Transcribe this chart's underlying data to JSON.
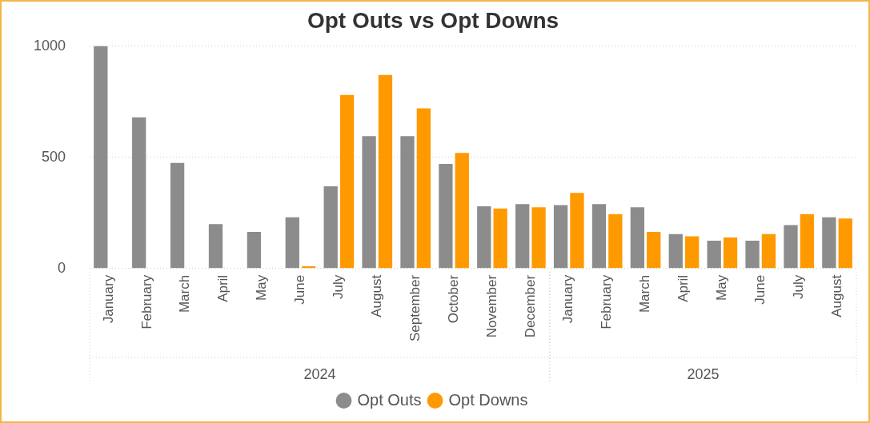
{
  "chart_data": {
    "type": "bar",
    "title": "Opt Outs vs Opt Downs",
    "categories": [
      "January",
      "February",
      "March",
      "April",
      "May",
      "June",
      "July",
      "August",
      "September",
      "October",
      "November",
      "December",
      "January",
      "February",
      "March",
      "April",
      "May",
      "June",
      "July",
      "August"
    ],
    "annotations": [
      "2024",
      "2025"
    ],
    "series": [
      {
        "name": "Opt Outs",
        "color": "#8c8c8c",
        "values": [
          1000,
          680,
          475,
          200,
          165,
          230,
          370,
          595,
          595,
          470,
          280,
          290,
          285,
          290,
          275,
          155,
          125,
          125,
          195,
          230
        ]
      },
      {
        "name": "Opt Downs",
        "color": "#ff9900",
        "values": [
          null,
          null,
          null,
          null,
          null,
          10,
          780,
          870,
          720,
          520,
          270,
          275,
          340,
          245,
          165,
          145,
          140,
          155,
          245,
          225
        ]
      }
    ],
    "ylim": [
      0,
      1000
    ],
    "yticks": [
      0,
      500,
      1000
    ],
    "grid": "y",
    "legend": "bottom"
  }
}
